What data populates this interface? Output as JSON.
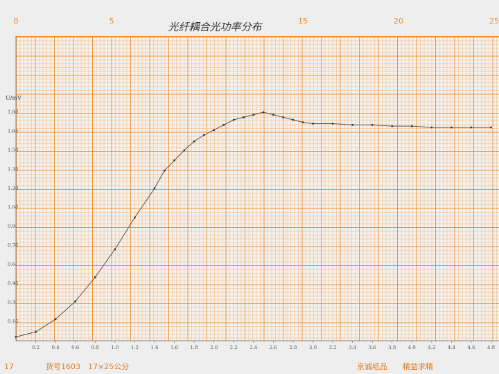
{
  "chart_data": {
    "type": "line",
    "title": "光纤耦合光功率分布",
    "y_label": "U/mV",
    "x": [
      0,
      0.2,
      0.4,
      0.6,
      0.8,
      1.0,
      1.2,
      1.4,
      1.5,
      1.6,
      1.7,
      1.8,
      1.9,
      2.0,
      2.1,
      2.2,
      2.3,
      2.4,
      2.5,
      2.6,
      2.7,
      2.8,
      2.9,
      3.0,
      3.2,
      3.4,
      3.6,
      3.8,
      4.0,
      4.2,
      4.4,
      4.6,
      4.8
    ],
    "series": [
      {
        "name": "U",
        "color": "#555555",
        "values": [
          0.03,
          0.07,
          0.17,
          0.31,
          0.5,
          0.72,
          0.97,
          1.2,
          1.34,
          1.42,
          1.5,
          1.57,
          1.62,
          1.66,
          1.7,
          1.74,
          1.76,
          1.78,
          1.8,
          1.78,
          1.76,
          1.74,
          1.72,
          1.71,
          1.71,
          1.7,
          1.7,
          1.69,
          1.69,
          1.68,
          1.68,
          1.68,
          1.68
        ]
      }
    ],
    "xlim": [
      0,
      4.88
    ],
    "ylim": [
      0,
      2.4
    ],
    "xticks": [
      0.2,
      0.4,
      0.6,
      0.8,
      {
        "value": 1,
        "label": "1.0"
      },
      1.2,
      1.4,
      1.6,
      1.8,
      {
        "value": 2,
        "label": "2.0"
      },
      2.2,
      2.4,
      2.6,
      2.8,
      {
        "value": 3,
        "label": "3.0"
      },
      3.2,
      3.4,
      3.6,
      3.8,
      {
        "value": 4,
        "label": "4.0"
      },
      4.2,
      4.4,
      4.6,
      4.8
    ],
    "yticks": [
      0.15,
      0.3,
      0.45,
      0.6,
      0.75,
      0.9,
      1.05,
      {
        "value": 1.2,
        "label": "1.20"
      },
      1.35,
      {
        "value": 1.5,
        "label": "1.50"
      },
      1.65,
      {
        "value": 1.8,
        "label": "1.80"
      }
    ],
    "x2lim": [
      0,
      25
    ],
    "x2ticks": [
      0,
      5,
      15,
      20,
      25
    ],
    "footer_left": "17",
    "footer_item": "货号1603　17×25公分",
    "footer_brand": "京诚纸品　　精益求精"
  }
}
